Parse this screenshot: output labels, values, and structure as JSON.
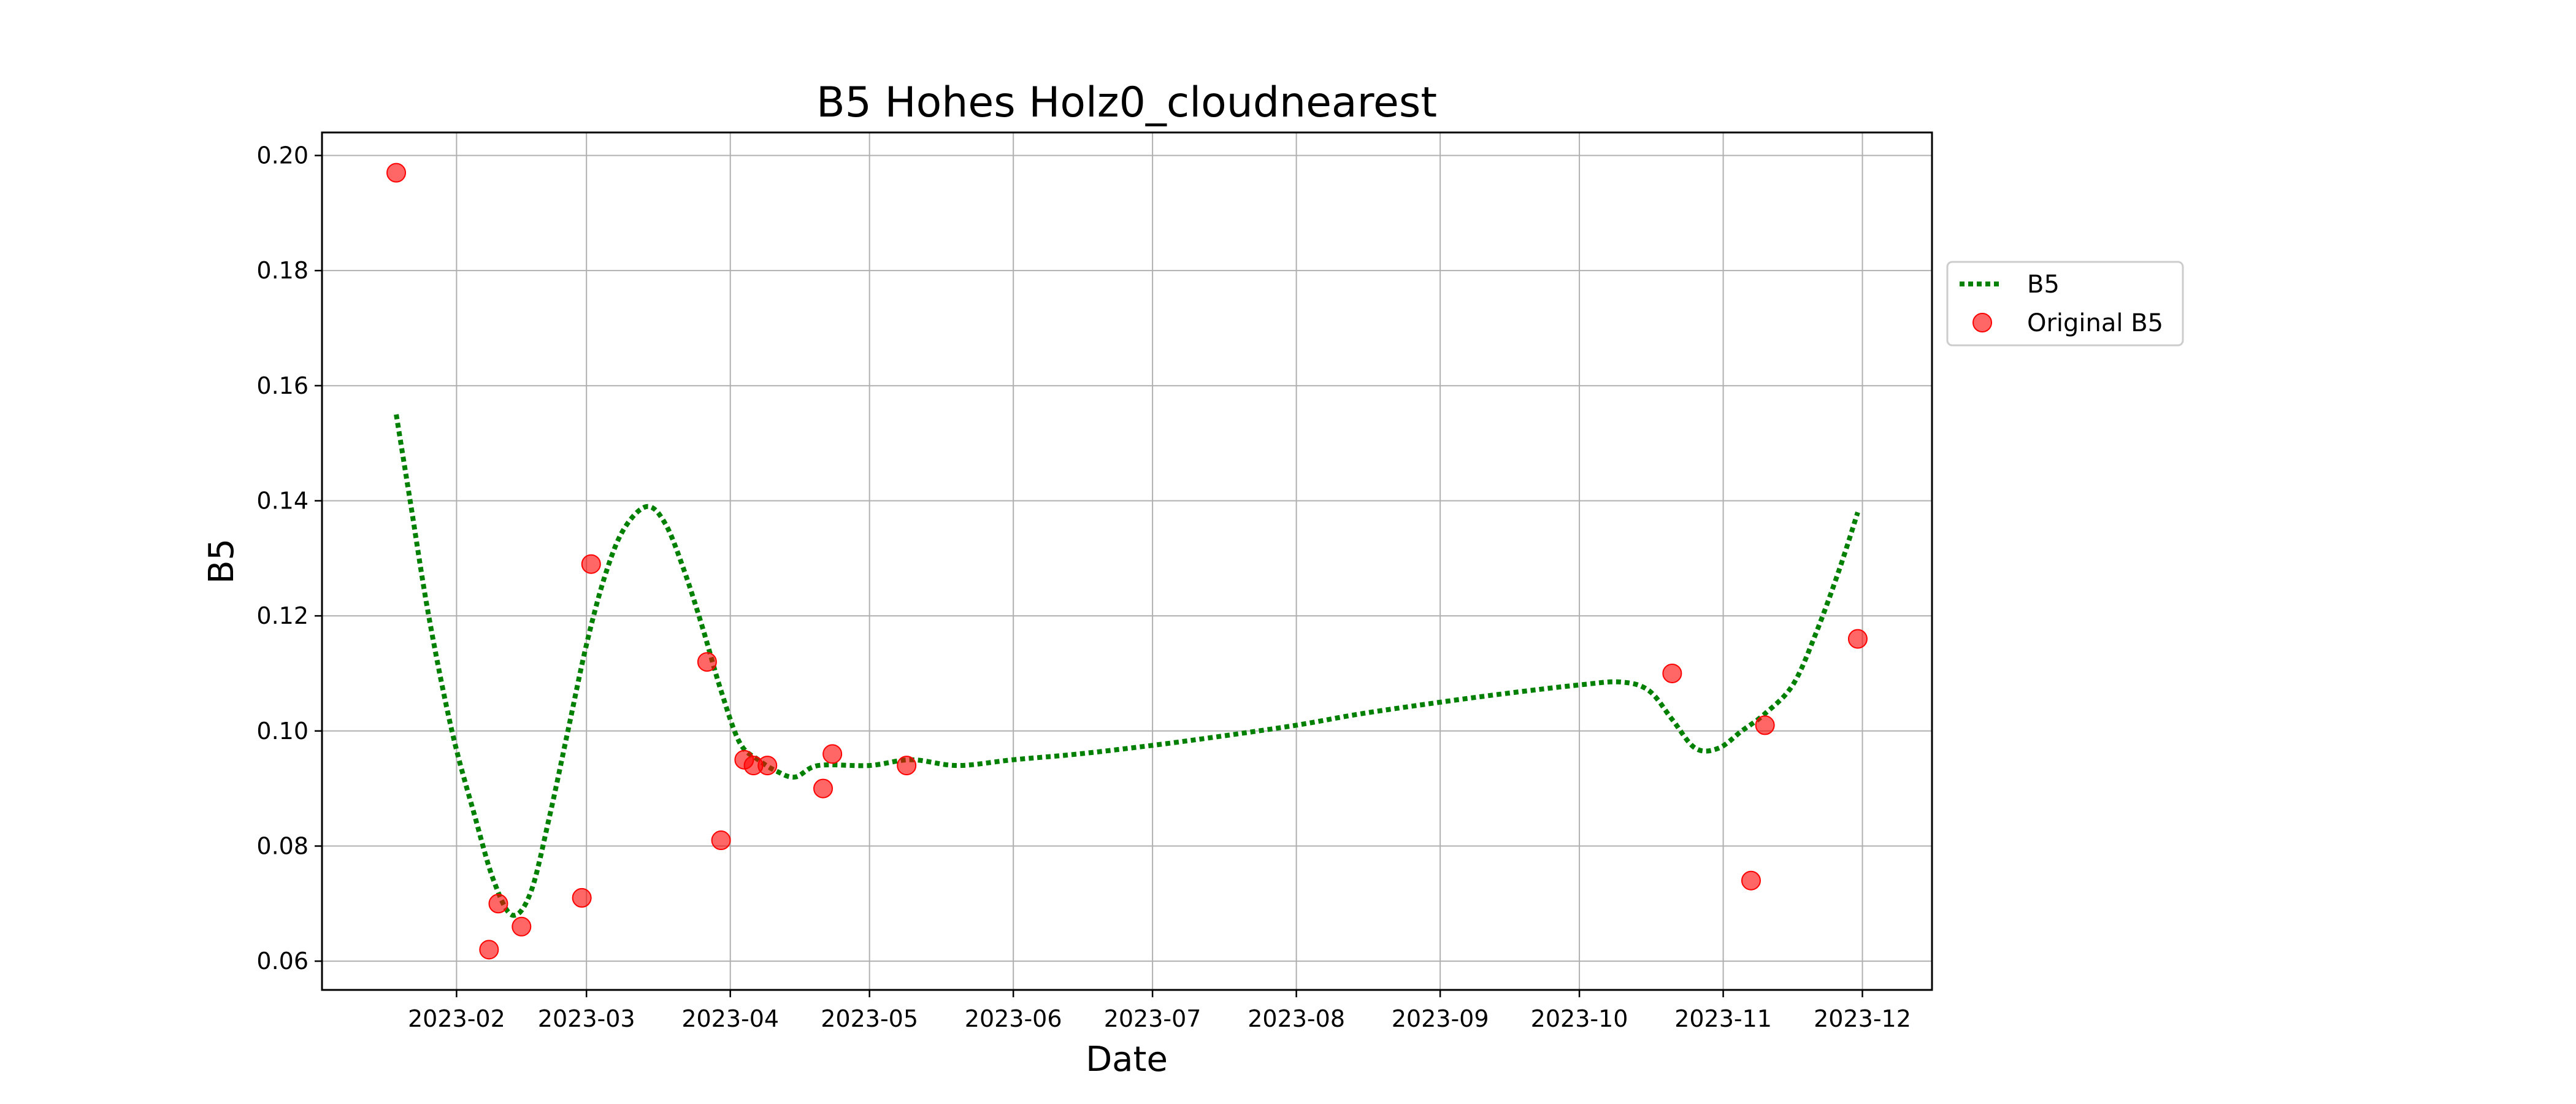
{
  "chart_data": {
    "type": "line",
    "title": "B5 Hohes Holz0_cloudnearest",
    "xlabel": "Date",
    "ylabel": "B5",
    "x_axis_type": "date",
    "xlim": [
      "2023-01-03",
      "2023-12-16"
    ],
    "ylim": [
      0.055,
      0.204
    ],
    "x_ticks": [
      "2023-02-01",
      "2023-03-01",
      "2023-04-01",
      "2023-05-01",
      "2023-06-01",
      "2023-07-01",
      "2023-08-01",
      "2023-09-01",
      "2023-10-01",
      "2023-11-01",
      "2023-12-01"
    ],
    "x_tick_labels": [
      "2023-02",
      "2023-03",
      "2023-04",
      "2023-05",
      "2023-06",
      "2023-07",
      "2023-08",
      "2023-09",
      "2023-10",
      "2023-11",
      "2023-12"
    ],
    "y_ticks": [
      0.06,
      0.08,
      0.1,
      0.12,
      0.14,
      0.16,
      0.18,
      0.2
    ],
    "y_tick_labels": [
      "0.06",
      "0.08",
      "0.10",
      "0.12",
      "0.14",
      "0.16",
      "0.18",
      "0.20"
    ],
    "grid": true,
    "legend_position": "outside-right-top",
    "series": [
      {
        "name": "B5",
        "kind": "line",
        "style": "dotted",
        "color": "#008000",
        "points": [
          [
            "2023-01-19",
            0.155
          ],
          [
            "2023-01-22",
            0.14
          ],
          [
            "2023-01-26",
            0.12
          ],
          [
            "2023-01-31",
            0.1
          ],
          [
            "2023-02-05",
            0.085
          ],
          [
            "2023-02-09",
            0.074
          ],
          [
            "2023-02-13",
            0.068
          ],
          [
            "2023-02-17",
            0.072
          ],
          [
            "2023-02-21",
            0.085
          ],
          [
            "2023-02-25",
            0.1
          ],
          [
            "2023-03-01",
            0.115
          ],
          [
            "2023-03-05",
            0.127
          ],
          [
            "2023-03-09",
            0.135
          ],
          [
            "2023-03-14",
            0.139
          ],
          [
            "2023-03-18",
            0.136
          ],
          [
            "2023-03-22",
            0.128
          ],
          [
            "2023-03-26",
            0.118
          ],
          [
            "2023-03-30",
            0.107
          ],
          [
            "2023-04-03",
            0.098
          ],
          [
            "2023-04-07",
            0.095
          ],
          [
            "2023-04-11",
            0.093
          ],
          [
            "2023-04-15",
            0.092
          ],
          [
            "2023-04-20",
            0.094
          ],
          [
            "2023-05-01",
            0.094
          ],
          [
            "2023-05-10",
            0.095
          ],
          [
            "2023-05-20",
            0.094
          ],
          [
            "2023-06-01",
            0.095
          ],
          [
            "2023-06-15",
            0.096
          ],
          [
            "2023-07-01",
            0.0975
          ],
          [
            "2023-07-15",
            0.099
          ],
          [
            "2023-08-01",
            0.101
          ],
          [
            "2023-08-15",
            0.103
          ],
          [
            "2023-09-01",
            0.105
          ],
          [
            "2023-09-15",
            0.1065
          ],
          [
            "2023-10-01",
            0.108
          ],
          [
            "2023-10-10",
            0.1085
          ],
          [
            "2023-10-16",
            0.107
          ],
          [
            "2023-10-21",
            0.102
          ],
          [
            "2023-10-26",
            0.097
          ],
          [
            "2023-10-31",
            0.097
          ],
          [
            "2023-11-05",
            0.1
          ],
          [
            "2023-11-10",
            0.103
          ],
          [
            "2023-11-16",
            0.108
          ],
          [
            "2023-11-21",
            0.117
          ],
          [
            "2023-11-26",
            0.128
          ],
          [
            "2023-11-30",
            0.138
          ]
        ]
      },
      {
        "name": "Original B5",
        "kind": "scatter",
        "color": "#ff0000",
        "points": [
          [
            "2023-01-19",
            0.197
          ],
          [
            "2023-02-08",
            0.062
          ],
          [
            "2023-02-10",
            0.07
          ],
          [
            "2023-02-15",
            0.066
          ],
          [
            "2023-02-28",
            0.071
          ],
          [
            "2023-03-02",
            0.129
          ],
          [
            "2023-03-27",
            0.112
          ],
          [
            "2023-03-30",
            0.081
          ],
          [
            "2023-04-04",
            0.095
          ],
          [
            "2023-04-06",
            0.094
          ],
          [
            "2023-04-09",
            0.094
          ],
          [
            "2023-04-21",
            0.09
          ],
          [
            "2023-04-23",
            0.096
          ],
          [
            "2023-05-09",
            0.094
          ],
          [
            "2023-10-21",
            0.11
          ],
          [
            "2023-11-07",
            0.074
          ],
          [
            "2023-11-10",
            0.101
          ],
          [
            "2023-11-30",
            0.116
          ]
        ]
      }
    ]
  }
}
